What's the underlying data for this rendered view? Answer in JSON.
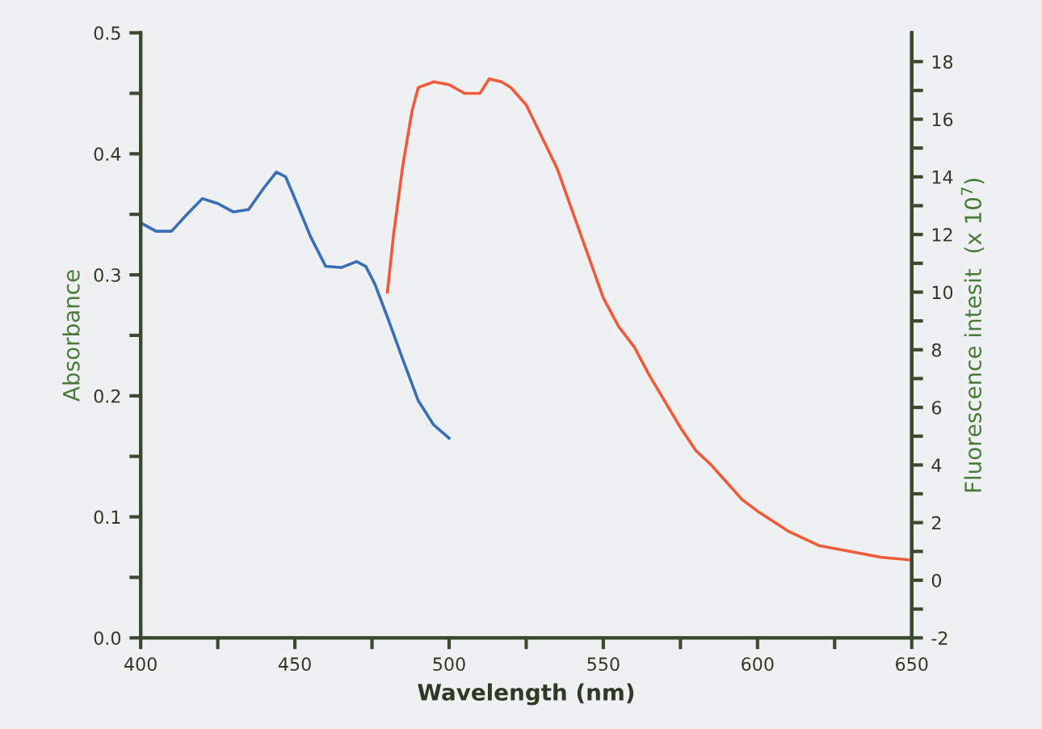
{
  "chart_data": {
    "type": "line",
    "xlabel": "Wavelength (nm)",
    "ylabel": "Absorbance",
    "y2label": "Fluorescence intesit  (x 10$^{7}$)",
    "xlim": [
      400,
      650
    ],
    "ylim": [
      0,
      0.5
    ],
    "y2lim": [
      -2,
      19
    ],
    "xticks": [
      400,
      {
        "value": 425,
        "label": null
      },
      450,
      {
        "value": 475,
        "label": null
      },
      500,
      {
        "value": 525,
        "label": null
      },
      550,
      {
        "value": 575,
        "label": null
      },
      600,
      {
        "value": 625,
        "label": null
      },
      650
    ],
    "yticks": [
      {
        "value": 0,
        "label": "0.0"
      },
      {
        "value": 0.05,
        "label": null
      },
      0.1,
      {
        "value": 0.15,
        "label": null
      },
      0.2,
      {
        "value": 0.25,
        "label": null
      },
      0.3,
      {
        "value": 0.35,
        "label": null
      },
      0.4,
      {
        "value": 0.45,
        "label": null
      },
      0.5
    ],
    "y2ticks": [
      -2,
      {
        "value": -1,
        "label": null
      },
      0,
      {
        "value": 1,
        "label": null
      },
      2,
      {
        "value": 3,
        "label": null
      },
      4,
      {
        "value": 5,
        "label": null
      },
      6,
      {
        "value": 7,
        "label": null
      },
      8,
      {
        "value": 9,
        "label": null
      },
      10,
      {
        "value": 11,
        "label": null
      },
      12,
      {
        "value": 13,
        "label": null
      },
      14,
      {
        "value": 15,
        "label": null
      },
      16,
      {
        "value": 17,
        "label": null
      },
      18
    ],
    "grid": false,
    "legend": false,
    "marker": "none",
    "line_style": "solid",
    "series": [
      {
        "color": "#3a6fb8",
        "axis": "y",
        "x": [
          400,
          405,
          410,
          415,
          420,
          425,
          430,
          435,
          440,
          444,
          447,
          450,
          455,
          460,
          465,
          470,
          473,
          476,
          480,
          485,
          490,
          495,
          500
        ],
        "values": [
          0.343,
          0.336,
          0.336,
          0.35,
          0.363,
          0.359,
          0.352,
          0.354,
          0.372,
          0.385,
          0.381,
          0.363,
          0.332,
          0.307,
          0.306,
          0.311,
          0.307,
          0.292,
          0.265,
          0.23,
          0.196,
          0.176,
          0.165
        ]
      },
      {
        "color": "#f05a3a",
        "axis": "y2",
        "x": [
          480,
          482,
          485,
          488,
          490,
          495,
          500,
          505,
          510,
          513,
          517,
          520,
          525,
          530,
          535,
          540,
          545,
          550,
          555,
          560,
          565,
          570,
          575,
          580,
          585,
          590,
          595,
          600,
          610,
          620,
          630,
          640,
          650
        ],
        "values": [
          10.0,
          12.0,
          14.4,
          16.3,
          17.1,
          17.3,
          17.2,
          16.9,
          16.9,
          17.4,
          17.3,
          17.1,
          16.5,
          15.4,
          14.3,
          12.8,
          11.3,
          9.8,
          8.8,
          8.1,
          7.1,
          6.2,
          5.3,
          4.5,
          4.0,
          3.4,
          2.8,
          2.4,
          1.7,
          1.2,
          1.0,
          0.8,
          0.7
        ]
      }
    ]
  }
}
